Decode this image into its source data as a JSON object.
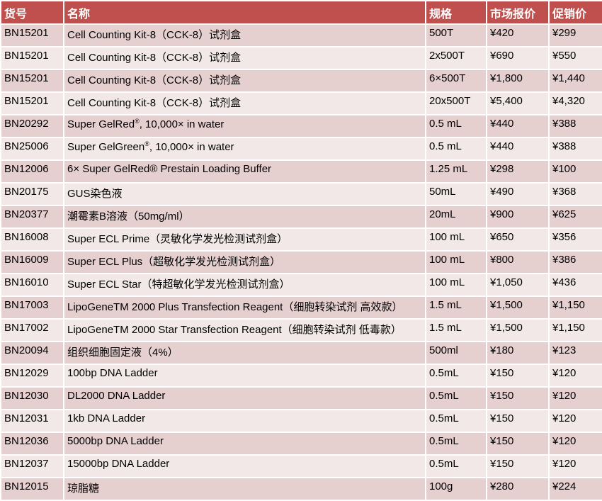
{
  "headers": [
    "货号",
    "名称",
    "规格",
    "市场报价",
    "促销价"
  ],
  "colors": {
    "header": "#c0504d",
    "row_odd": "#e6cfcf",
    "row_even": "#f2e8e8"
  },
  "rows": [
    [
      "BN15201",
      "Cell Counting Kit-8（CCK-8）试剂盒",
      "500T",
      "¥420",
      "¥299"
    ],
    [
      "BN15201",
      "Cell Counting Kit-8（CCK-8）试剂盒",
      "2x500T",
      "¥690",
      "¥550"
    ],
    [
      "BN15201",
      "Cell Counting Kit-8（CCK-8）试剂盒",
      "6×500T",
      "¥1,800",
      "¥1,440"
    ],
    [
      "BN15201",
      "Cell Counting Kit-8（CCK-8）试剂盒",
      "20x500T",
      "¥5,400",
      "¥4,320"
    ],
    [
      "BN20292",
      "Super GelRed®, 10,000× in water",
      "0.5 mL",
      "¥440",
      "¥388"
    ],
    [
      "BN25006",
      "Super GelGreen®, 10,000× in water",
      "0.5 mL",
      "¥440",
      "¥388"
    ],
    [
      "BN12006",
      "6× Super GelRed® Prestain Loading Buffer",
      "1.25 mL",
      "¥298",
      "¥100"
    ],
    [
      "BN20175",
      "GUS染色液",
      "50mL",
      "¥490",
      "¥368"
    ],
    [
      "BN20377",
      "潮霉素B溶液（50mg/ml）",
      "20mL",
      "¥900",
      "¥625"
    ],
    [
      "BN16008",
      "Super ECL Prime（灵敏化学发光检测试剂盒）",
      "100 mL",
      "¥650",
      "¥356"
    ],
    [
      "BN16009",
      "Super ECL Plus（超敏化学发光检测试剂盒）",
      "100 mL",
      "¥800",
      "¥386"
    ],
    [
      "BN16010",
      "Super ECL Star（特超敏化学发光检测试剂盒）",
      "100 mL",
      "¥1,050",
      "¥436"
    ],
    [
      "BN17003",
      "LipoGeneTM 2000 Plus Transfection Reagent（细胞转染试剂 高效款）",
      "1.5 mL",
      "¥1,500",
      "¥1,150"
    ],
    [
      "BN17002",
      "LipoGeneTM 2000 Star Transfection Reagent（细胞转染试剂 低毒款）",
      "1.5 mL",
      "¥1,500",
      "¥1,150"
    ],
    [
      "BN20094",
      "组织细胞固定液（4%）",
      "500ml",
      "¥180",
      "¥123"
    ],
    [
      "BN12029",
      "100bp DNA Ladder",
      "0.5mL",
      "¥150",
      "¥120"
    ],
    [
      "BN12030",
      "DL2000 DNA Ladder",
      "0.5mL",
      "¥150",
      "¥120"
    ],
    [
      "BN12031",
      "1kb DNA Ladder",
      "0.5mL",
      "¥150",
      "¥120"
    ],
    [
      "BN12036",
      "5000bp DNA Ladder",
      "0.5mL",
      "¥150",
      "¥120"
    ],
    [
      "BN12037",
      "15000bp DNA Ladder",
      "0.5mL",
      "¥150",
      "¥120"
    ],
    [
      "BN12015",
      "琼脂糖",
      "100g",
      "¥280",
      "¥224"
    ]
  ]
}
